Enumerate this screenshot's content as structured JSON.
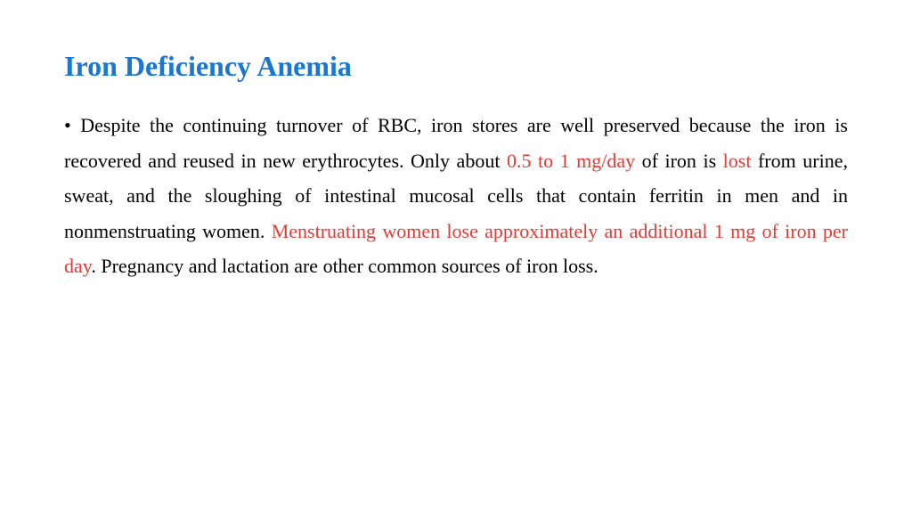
{
  "title": "Iron Deficiency Anemia",
  "para": {
    "bullet": "• ",
    "t1": "Despite the continuing turnover of RBC, iron stores are well preserved because the iron is recovered and reused in new erythrocytes. Only about ",
    "h1": "0.5 to 1 mg/day",
    "t2": " of iron is ",
    "h2": "lost",
    "t3": " from urine, sweat, and the sloughing of intestinal mucosal cells that contain ferritin in men and in nonmenstruating women. ",
    "h3": "Menstruating women lose approximately an additional 1 mg of iron per day",
    "t4": ". Pregnancy and lactation are other common sources of iron loss."
  },
  "colors": {
    "title": "#1976d2",
    "body": "#000000",
    "highlight": "#e53935",
    "background": "#ffffff"
  },
  "typography": {
    "title_fontsize": 32,
    "body_fontsize": 22,
    "line_height": 1.8,
    "font_family": "Georgia/Times serif"
  }
}
